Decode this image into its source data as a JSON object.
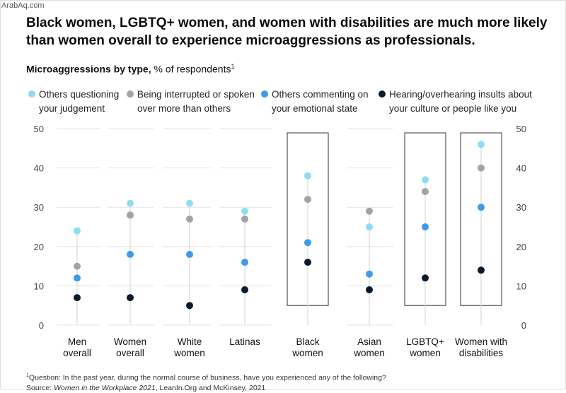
{
  "watermark": "ArabAq.com",
  "headline": "Black women, LGBTQ+ women, and women with disabilities are much more likely than women overall to experience microaggressions as professionals.",
  "subtitle": {
    "bold": "Microaggressions by type,",
    "rest": " % of respondents",
    "sup": "1"
  },
  "legend": [
    {
      "name": "Others questioning your judgement",
      "line1": "Others questioning",
      "line2": "your judgement",
      "color": "#8fdcf1"
    },
    {
      "name": "Being interrupted or spoken over more than others",
      "line1": "Being interrupted or spoken",
      "line2": "over more than others",
      "color": "#a3a3a3"
    },
    {
      "name": "Others commenting on your emotional state",
      "line1": "Others commenting on",
      "line2": "your emotional state",
      "color": "#3d9be9"
    },
    {
      "name": "Hearing/overhearing insults about your culture or people like you",
      "line1": "Hearing/overhearing insults about",
      "line2": "your culture or people like you",
      "color": "#0b1a2e"
    }
  ],
  "chart_data": {
    "type": "scatter",
    "title": "Microaggressions by type, % of respondents",
    "ylim": [
      0,
      50
    ],
    "yticks": [
      "0",
      "10",
      "20",
      "30",
      "40",
      "50"
    ],
    "grid": true,
    "legend_placement": "top",
    "categories": [
      [
        "Men",
        "overall"
      ],
      [
        "Women",
        "overall"
      ],
      [
        "White",
        "women"
      ],
      [
        "Latinas",
        ""
      ],
      [
        "Black",
        "women"
      ],
      [
        "Asian",
        "women"
      ],
      [
        "LGBTQ+",
        "women"
      ],
      [
        "Women with",
        "disabilities"
      ]
    ],
    "highlighted": [
      4,
      6,
      7
    ],
    "series": [
      {
        "name": "Others questioning your judgement",
        "color": "#8fdcf1",
        "values": [
          24,
          31,
          31,
          29,
          38,
          25,
          37,
          46
        ]
      },
      {
        "name": "Being interrupted or spoken over more than others",
        "color": "#a3a3a3",
        "values": [
          15,
          28,
          27,
          27,
          32,
          29,
          34,
          40
        ]
      },
      {
        "name": "Others commenting on your emotional state",
        "color": "#3d9be9",
        "values": [
          12,
          18,
          18,
          16,
          21,
          13,
          25,
          30
        ]
      },
      {
        "name": "Hearing/overhearing insults about your culture or people like you",
        "color": "#0b1a2e",
        "values": [
          7,
          7,
          5,
          9,
          16,
          9,
          12,
          14
        ]
      }
    ]
  },
  "footnote": {
    "sup": "1",
    "question": "Question: In the past year, during the normal course of business, have you experienced any of the following?",
    "source_prefix": "Source: ",
    "source_title": "Women in the Workplace 2021",
    "source_rest": ", LeanIn.Org and McKinsey, 2021"
  }
}
